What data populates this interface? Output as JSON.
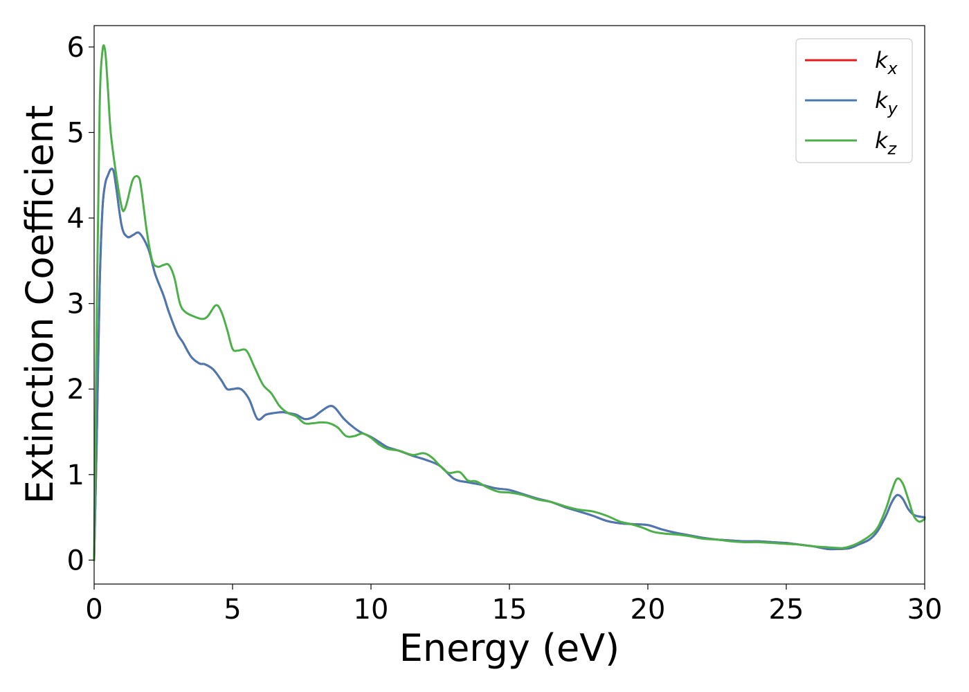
{
  "chart_data": {
    "type": "line",
    "xlabel": "Energy (eV)",
    "ylabel": "Extinction Coefficient",
    "xlim": [
      0,
      30
    ],
    "ylim": [
      -0.28,
      6.25
    ],
    "xticks": [
      0,
      5,
      10,
      15,
      20,
      25,
      30
    ],
    "yticks": [
      0,
      1,
      2,
      3,
      4,
      5,
      6
    ],
    "grid": false,
    "legend_position": "top-right",
    "series": [
      {
        "name": "k",
        "subscript": "x",
        "color": "#e41a1c",
        "x": [
          0,
          0.1,
          0.2,
          0.3,
          0.4,
          0.5,
          0.6,
          0.7,
          0.8,
          1.0,
          1.2,
          1.4,
          1.6,
          1.8,
          2.0,
          2.2,
          2.5,
          2.7,
          3.0,
          3.2,
          3.5,
          3.8,
          4.0,
          4.3,
          4.6,
          4.8,
          5.0,
          5.3,
          5.6,
          5.9,
          6.2,
          6.5,
          6.8,
          7.0,
          7.3,
          7.6,
          7.9,
          8.2,
          8.5,
          8.7,
          9.0,
          9.3,
          9.6,
          10.0,
          10.3,
          10.6,
          11.0,
          11.5,
          12.0,
          12.5,
          13.0,
          13.5,
          14.0,
          14.5,
          15.0,
          15.5,
          16.0,
          16.5,
          17.0,
          17.5,
          18.0,
          18.5,
          19.0,
          19.5,
          20.0,
          20.5,
          21.0,
          21.5,
          22.0,
          22.5,
          23.0,
          23.5,
          24.0,
          24.5,
          25.0,
          25.5,
          26.0,
          26.5,
          27.0,
          27.3,
          27.6,
          28.0,
          28.3,
          28.6,
          28.8,
          29.0,
          29.2,
          29.4,
          29.6,
          29.8,
          30.0
        ],
        "y": [
          0.0,
          1.5,
          3.2,
          4.1,
          4.4,
          4.5,
          4.57,
          4.55,
          4.35,
          3.9,
          3.78,
          3.8,
          3.83,
          3.75,
          3.6,
          3.35,
          3.1,
          2.9,
          2.65,
          2.55,
          2.38,
          2.3,
          2.29,
          2.23,
          2.1,
          2.0,
          2.0,
          2.0,
          1.88,
          1.65,
          1.7,
          1.72,
          1.73,
          1.72,
          1.7,
          1.65,
          1.67,
          1.74,
          1.8,
          1.78,
          1.66,
          1.57,
          1.5,
          1.44,
          1.38,
          1.32,
          1.28,
          1.22,
          1.17,
          1.1,
          0.95,
          0.91,
          0.88,
          0.84,
          0.82,
          0.77,
          0.72,
          0.68,
          0.62,
          0.57,
          0.52,
          0.46,
          0.43,
          0.42,
          0.41,
          0.36,
          0.32,
          0.29,
          0.26,
          0.24,
          0.23,
          0.22,
          0.22,
          0.21,
          0.2,
          0.18,
          0.16,
          0.13,
          0.13,
          0.14,
          0.18,
          0.24,
          0.34,
          0.52,
          0.67,
          0.76,
          0.72,
          0.6,
          0.53,
          0.51,
          0.5
        ]
      },
      {
        "name": "k",
        "subscript": "y",
        "color": "#4a78b0",
        "x": [
          0,
          0.1,
          0.2,
          0.3,
          0.4,
          0.5,
          0.6,
          0.7,
          0.8,
          1.0,
          1.2,
          1.4,
          1.6,
          1.8,
          2.0,
          2.2,
          2.5,
          2.7,
          3.0,
          3.2,
          3.5,
          3.8,
          4.0,
          4.3,
          4.6,
          4.8,
          5.0,
          5.3,
          5.6,
          5.9,
          6.2,
          6.5,
          6.8,
          7.0,
          7.3,
          7.6,
          7.9,
          8.2,
          8.5,
          8.7,
          9.0,
          9.3,
          9.6,
          10.0,
          10.3,
          10.6,
          11.0,
          11.5,
          12.0,
          12.5,
          13.0,
          13.5,
          14.0,
          14.5,
          15.0,
          15.5,
          16.0,
          16.5,
          17.0,
          17.5,
          18.0,
          18.5,
          19.0,
          19.5,
          20.0,
          20.5,
          21.0,
          21.5,
          22.0,
          22.5,
          23.0,
          23.5,
          24.0,
          24.5,
          25.0,
          25.5,
          26.0,
          26.5,
          27.0,
          27.3,
          27.6,
          28.0,
          28.3,
          28.6,
          28.8,
          29.0,
          29.2,
          29.4,
          29.6,
          29.8,
          30.0
        ],
        "y": [
          0.0,
          1.5,
          3.2,
          4.1,
          4.4,
          4.5,
          4.57,
          4.55,
          4.35,
          3.9,
          3.78,
          3.8,
          3.83,
          3.75,
          3.6,
          3.35,
          3.1,
          2.9,
          2.65,
          2.55,
          2.38,
          2.3,
          2.29,
          2.23,
          2.1,
          2.0,
          2.0,
          2.0,
          1.88,
          1.65,
          1.7,
          1.72,
          1.73,
          1.72,
          1.7,
          1.65,
          1.67,
          1.74,
          1.8,
          1.78,
          1.66,
          1.57,
          1.5,
          1.44,
          1.38,
          1.32,
          1.28,
          1.22,
          1.17,
          1.1,
          0.95,
          0.91,
          0.88,
          0.84,
          0.82,
          0.77,
          0.72,
          0.68,
          0.62,
          0.57,
          0.52,
          0.46,
          0.43,
          0.42,
          0.41,
          0.36,
          0.32,
          0.29,
          0.26,
          0.24,
          0.23,
          0.22,
          0.22,
          0.21,
          0.2,
          0.18,
          0.16,
          0.13,
          0.13,
          0.14,
          0.18,
          0.24,
          0.34,
          0.52,
          0.67,
          0.76,
          0.72,
          0.6,
          0.53,
          0.51,
          0.5
        ]
      },
      {
        "name": "k",
        "subscript": "z",
        "color": "#4daf4a",
        "x": [
          0,
          0.1,
          0.2,
          0.3,
          0.4,
          0.5,
          0.6,
          0.8,
          1.0,
          1.1,
          1.2,
          1.4,
          1.6,
          1.7,
          1.9,
          2.1,
          2.3,
          2.5,
          2.7,
          2.9,
          3.1,
          3.3,
          3.6,
          3.9,
          4.1,
          4.4,
          4.6,
          4.8,
          5.0,
          5.2,
          5.5,
          5.8,
          6.1,
          6.4,
          6.7,
          7.0,
          7.3,
          7.6,
          7.9,
          8.2,
          8.5,
          8.8,
          9.1,
          9.4,
          9.7,
          10.0,
          10.3,
          10.6,
          11.0,
          11.5,
          11.9,
          12.2,
          12.5,
          12.8,
          13.2,
          13.5,
          13.8,
          14.2,
          14.6,
          15.0,
          15.5,
          16.0,
          16.5,
          17.0,
          17.5,
          18.0,
          18.5,
          19.0,
          19.4,
          19.8,
          20.2,
          20.6,
          21.0,
          21.5,
          22.0,
          22.5,
          23.0,
          23.5,
          24.0,
          24.5,
          25.0,
          25.5,
          26.0,
          26.5,
          27.0,
          27.3,
          27.6,
          28.0,
          28.3,
          28.6,
          28.8,
          29.0,
          29.2,
          29.4,
          29.6,
          29.8,
          30.0
        ],
        "y": [
          0.0,
          3.0,
          5.3,
          5.95,
          5.95,
          5.5,
          5.0,
          4.5,
          4.12,
          4.1,
          4.2,
          4.45,
          4.48,
          4.35,
          3.85,
          3.5,
          3.43,
          3.45,
          3.45,
          3.3,
          3.0,
          2.9,
          2.85,
          2.82,
          2.85,
          2.98,
          2.9,
          2.7,
          2.47,
          2.45,
          2.45,
          2.25,
          2.05,
          1.95,
          1.8,
          1.72,
          1.68,
          1.6,
          1.6,
          1.61,
          1.6,
          1.55,
          1.45,
          1.45,
          1.48,
          1.43,
          1.35,
          1.3,
          1.28,
          1.23,
          1.25,
          1.2,
          1.1,
          1.02,
          1.03,
          0.93,
          0.92,
          0.85,
          0.8,
          0.79,
          0.76,
          0.71,
          0.68,
          0.63,
          0.59,
          0.57,
          0.52,
          0.45,
          0.42,
          0.38,
          0.33,
          0.31,
          0.3,
          0.28,
          0.25,
          0.24,
          0.22,
          0.21,
          0.21,
          0.2,
          0.19,
          0.18,
          0.16,
          0.15,
          0.14,
          0.16,
          0.2,
          0.28,
          0.38,
          0.6,
          0.8,
          0.95,
          0.9,
          0.72,
          0.52,
          0.45,
          0.48
        ]
      }
    ]
  }
}
